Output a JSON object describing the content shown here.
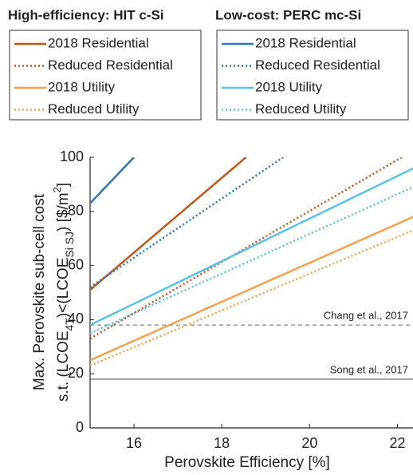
{
  "chart_data": {
    "type": "line",
    "xlabel": "Perovskite Efficiency [%]",
    "ylabel": [
      [
        {
          "text": "Max. Perovskite sub-cell cost",
          "shift": "none"
        }
      ],
      [
        {
          "text": "s.t. (LCOE",
          "shift": "none"
        },
        {
          "text": "4T",
          "shift": "sub"
        },
        {
          "text": ")<(LCOE",
          "shift": "none"
        },
        {
          "text": "Si SJ",
          "shift": "sub"
        },
        {
          "text": ") [$/m",
          "shift": "none"
        },
        {
          "text": "2",
          "shift": "super"
        },
        {
          "text": "]",
          "shift": "none"
        }
      ]
    ],
    "xlim": [
      15,
      22.5
    ],
    "ylim": [
      0,
      100
    ],
    "xticks": [
      16,
      18,
      20,
      22
    ],
    "yticks": [
      0,
      20,
      40,
      60,
      80,
      100
    ],
    "series_groups": [
      {
        "title": "High-efficiency: HIT c-Si",
        "series": [
          {
            "name": "2018 Residential",
            "color": "#c0561e",
            "style": "solid",
            "x": [
              15,
              18.55
            ],
            "values": [
              51,
              100
            ]
          },
          {
            "name": "Reduced Residential",
            "color": "#c0561e",
            "style": "dotted",
            "x": [
              15,
              22.1
            ],
            "values": [
              33,
              100
            ]
          },
          {
            "name": "2018 Utility",
            "color": "#f5a050",
            "style": "solid",
            "x": [
              15,
              22.5
            ],
            "values": [
              25,
              79
            ]
          },
          {
            "name": "Reduced Utility",
            "color": "#f5a050",
            "style": "dotted",
            "x": [
              15,
              22.5
            ],
            "values": [
              23,
              74
            ]
          }
        ]
      },
      {
        "title": "Low-cost: PERC mc-Si",
        "series": [
          {
            "name": "2018 Residential",
            "color": "#2e75b6",
            "style": "solid",
            "x": [
              15,
              16
            ],
            "values": [
              83,
              100
            ]
          },
          {
            "name": "Reduced Residential",
            "color": "#2e75b6",
            "style": "dotted",
            "x": [
              15,
              19.4
            ],
            "values": [
              52,
              100
            ]
          },
          {
            "name": "2018 Utility",
            "color": "#5bbfe8",
            "style": "solid",
            "x": [
              15,
              22.5
            ],
            "values": [
              38,
              97
            ]
          },
          {
            "name": "Reduced Utility",
            "color": "#5bbfe8",
            "style": "dotted",
            "x": [
              15,
              22.5
            ],
            "values": [
              35,
              90
            ]
          }
        ]
      }
    ],
    "annotations": [
      {
        "text": "Chang et al., 2017",
        "y": 38,
        "style": "dashed",
        "color": "#666666"
      },
      {
        "text": "Song et al., 2017",
        "y": 18,
        "style": "solid",
        "color": "#444444"
      }
    ]
  }
}
